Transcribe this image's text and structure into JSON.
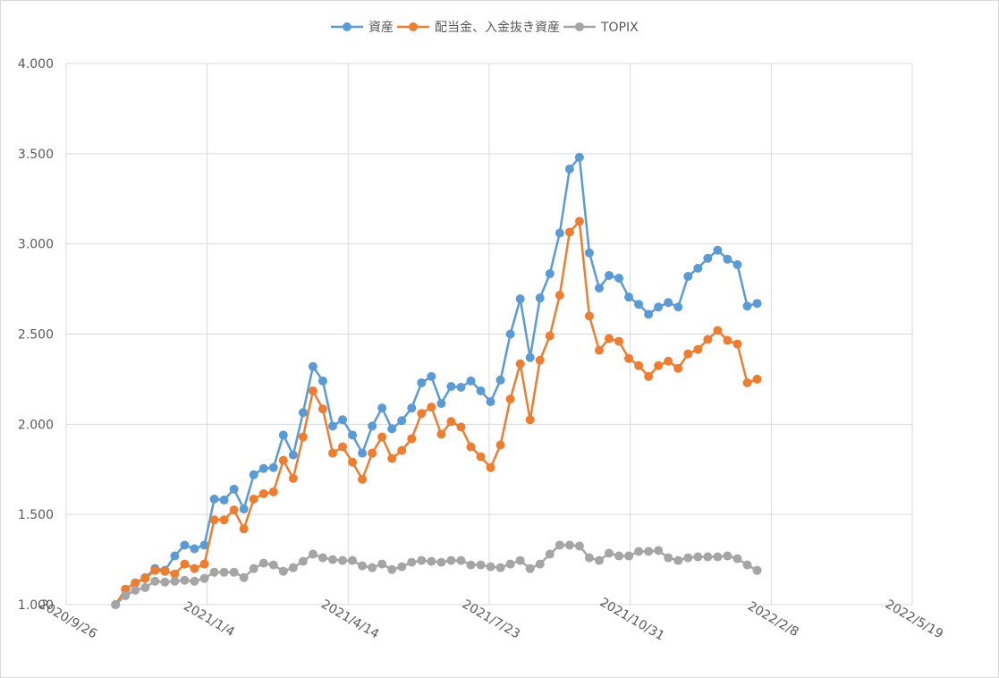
{
  "chart_data": {
    "type": "line",
    "x": [
      "2020/10/31",
      "2020/11/7",
      "2020/11/14",
      "2020/11/21",
      "2020/11/28",
      "2020/12/5",
      "2020/12/12",
      "2020/12/19",
      "2020/12/26",
      "2021/1/2",
      "2021/1/9",
      "2021/1/16",
      "2021/1/23",
      "2021/1/30",
      "2021/2/6",
      "2021/2/13",
      "2021/2/20",
      "2021/2/27",
      "2021/3/6",
      "2021/3/13",
      "2021/3/20",
      "2021/3/27",
      "2021/4/3",
      "2021/4/10",
      "2021/4/17",
      "2021/4/24",
      "2021/5/1",
      "2021/5/8",
      "2021/5/15",
      "2021/5/22",
      "2021/5/29",
      "2021/6/5",
      "2021/6/12",
      "2021/6/19",
      "2021/6/26",
      "2021/7/3",
      "2021/7/10",
      "2021/7/17",
      "2021/7/24",
      "2021/7/31",
      "2021/8/7",
      "2021/8/14",
      "2021/8/21",
      "2021/8/28",
      "2021/9/4",
      "2021/9/11",
      "2021/9/18",
      "2021/9/25",
      "2021/10/2",
      "2021/10/9",
      "2021/10/16",
      "2021/10/23",
      "2021/10/30",
      "2021/11/6",
      "2021/11/13",
      "2021/11/20",
      "2021/11/27",
      "2021/12/4",
      "2021/12/11",
      "2021/12/18",
      "2021/12/25",
      "2022/1/1",
      "2022/1/8",
      "2022/1/15",
      "2022/1/22",
      "2022/1/29"
    ],
    "series": [
      {
        "name": "資産",
        "color": "#5b9bd5",
        "values": [
          1.0,
          1.085,
          1.12,
          1.15,
          1.2,
          1.19,
          1.27,
          1.33,
          1.31,
          1.33,
          1.585,
          1.58,
          1.64,
          1.53,
          1.72,
          1.755,
          1.76,
          1.94,
          1.83,
          2.065,
          2.32,
          2.24,
          1.99,
          2.025,
          1.94,
          1.84,
          1.99,
          2.09,
          1.975,
          2.02,
          2.09,
          2.23,
          2.265,
          2.115,
          2.21,
          2.205,
          2.24,
          2.185,
          2.125,
          2.245,
          2.5,
          2.695,
          2.37,
          2.7,
          2.835,
          3.06,
          3.415,
          3.48,
          2.95,
          2.755,
          2.825,
          2.81,
          2.705,
          2.665,
          2.61,
          2.65,
          2.675,
          2.65,
          2.82,
          2.865,
          2.92,
          2.965,
          2.915,
          2.885,
          2.655,
          2.67
        ]
      },
      {
        "name": "配当金、入金抜き資産",
        "color": "#ed7d31",
        "values": [
          1.0,
          1.085,
          1.12,
          1.145,
          1.19,
          1.185,
          1.17,
          1.225,
          1.2,
          1.225,
          1.47,
          1.47,
          1.525,
          1.42,
          1.585,
          1.615,
          1.625,
          1.8,
          1.7,
          1.93,
          2.185,
          2.085,
          1.84,
          1.875,
          1.79,
          1.695,
          1.84,
          1.93,
          1.81,
          1.855,
          1.92,
          2.06,
          2.095,
          1.945,
          2.015,
          1.985,
          1.875,
          1.82,
          1.76,
          1.885,
          2.14,
          2.335,
          2.025,
          2.355,
          2.49,
          2.715,
          3.065,
          3.125,
          2.6,
          2.41,
          2.475,
          2.46,
          2.365,
          2.325,
          2.265,
          2.325,
          2.35,
          2.31,
          2.39,
          2.415,
          2.47,
          2.52,
          2.465,
          2.445,
          2.23,
          2.25
        ]
      },
      {
        "name": "TOPIX",
        "color": "#a5a5a5",
        "values": [
          1.0,
          1.05,
          1.08,
          1.095,
          1.13,
          1.125,
          1.13,
          1.135,
          1.13,
          1.145,
          1.18,
          1.18,
          1.18,
          1.15,
          1.2,
          1.23,
          1.22,
          1.185,
          1.205,
          1.24,
          1.28,
          1.26,
          1.25,
          1.245,
          1.245,
          1.215,
          1.205,
          1.225,
          1.195,
          1.21,
          1.235,
          1.245,
          1.24,
          1.235,
          1.245,
          1.245,
          1.22,
          1.22,
          1.21,
          1.205,
          1.225,
          1.245,
          1.2,
          1.225,
          1.28,
          1.33,
          1.33,
          1.325,
          1.26,
          1.245,
          1.285,
          1.27,
          1.27,
          1.295,
          1.295,
          1.3,
          1.26,
          1.245,
          1.26,
          1.265,
          1.265,
          1.265,
          1.27,
          1.255,
          1.22,
          1.19
        ]
      }
    ],
    "xlim": [
      "2020/9/26",
      "2022/5/19"
    ],
    "xticks": [
      "2020/9/26",
      "2021/1/4",
      "2021/4/14",
      "2021/7/23",
      "2021/10/31",
      "2022/2/8",
      "2022/5/19"
    ],
    "ylim": [
      1,
      4
    ],
    "yticks": [
      {
        "value": 1,
        "label": "1.000"
      },
      {
        "value": 1.5,
        "label": "1.500"
      },
      {
        "value": 2,
        "label": "2.000"
      },
      {
        "value": 2.5,
        "label": "2.500"
      },
      {
        "value": 3,
        "label": "3.000"
      },
      {
        "value": 3.5,
        "label": "3.500"
      },
      {
        "value": 4,
        "label": "4.000"
      }
    ],
    "grid": true,
    "legend": "top"
  }
}
